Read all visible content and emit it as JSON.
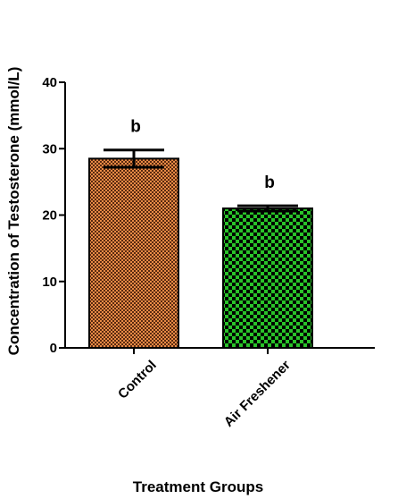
{
  "chart_data": {
    "type": "bar",
    "ylabel": "Concentration of Testosterone (mmol/L)",
    "xlabel": "Treatment Groups",
    "ylim": [
      0,
      40
    ],
    "yticks": [
      0,
      10,
      20,
      30,
      40
    ],
    "categories": [
      "Control",
      "Air Freshener"
    ],
    "values": [
      28.5,
      21.0
    ],
    "errors": [
      1.3,
      0.4
    ],
    "annotations": [
      "b",
      "b"
    ],
    "bar_colors": [
      "#e07b39",
      "#22b022"
    ],
    "grid": false,
    "legend": "none"
  }
}
